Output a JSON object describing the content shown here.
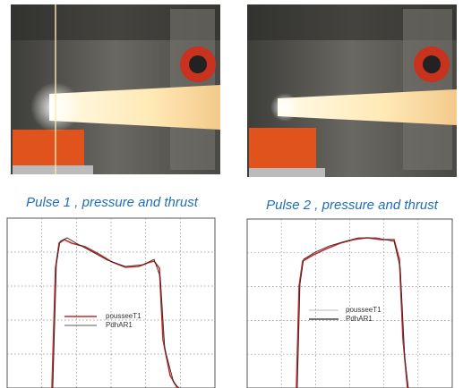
{
  "captions": [
    "Pulse 1 , pressure and thrust",
    "Pulse 2 , pressure and thrust"
  ],
  "plots": [
    {
      "legend": [
        "pousseeT1",
        "PdhAR1"
      ]
    },
    {
      "legend": [
        "pousseeT1",
        "PdhAR1"
      ]
    }
  ]
}
